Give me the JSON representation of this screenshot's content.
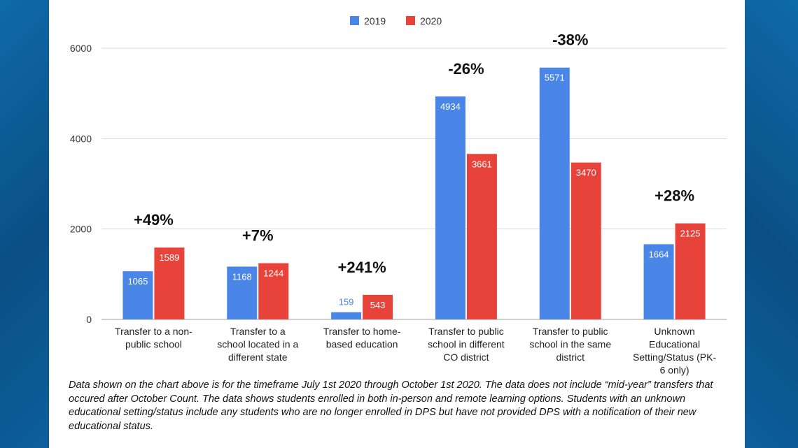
{
  "colors": {
    "2019": "#4a86e8",
    "2020": "#e8433a",
    "grid": "#d9d9d9",
    "frame": "#0c5a92"
  },
  "chart_data": {
    "type": "bar",
    "categories": [
      [
        "Transfer to a non-",
        "public school"
      ],
      [
        "Transfer to a",
        "school located in a",
        "different state"
      ],
      [
        "Transfer to home-",
        "based education"
      ],
      [
        "Transfer to public",
        "school in different",
        "CO district"
      ],
      [
        "Transfer to public",
        "school in the same",
        "district"
      ],
      [
        "Unknown",
        "Educational",
        "Setting/Status (PK-",
        "6 only)"
      ]
    ],
    "series": [
      {
        "name": "2019",
        "values": [
          1065,
          1168,
          159,
          4934,
          5571,
          1664
        ]
      },
      {
        "name": "2020",
        "values": [
          1589,
          1244,
          543,
          3661,
          3470,
          2125
        ]
      }
    ],
    "value_labels": {
      "2019": [
        "1065",
        "1168",
        "159",
        "4934",
        "5571",
        "1664"
      ],
      "2020": [
        "1589",
        "1244",
        "543",
        "3661",
        "3470",
        "2125"
      ]
    },
    "pct_change": [
      "+49%",
      "+7%",
      "+241%",
      "-26%",
      "-38%",
      "+28%"
    ],
    "yticks": [
      0,
      2000,
      4000,
      6000
    ],
    "ylim": [
      0,
      6000
    ],
    "grid": true,
    "legend_position": "top-center"
  },
  "footnote": "Data shown on the chart above is for the timeframe July 1st 2020 through October 1st 2020. The data does not include “mid-year” transfers that occured after October Count. The data shows students enrolled in both in-person and remote learning options. Students with an unknown educational setting/status include any students who are no longer enrolled in DPS but have not provided DPS with a notification of their new educational status."
}
